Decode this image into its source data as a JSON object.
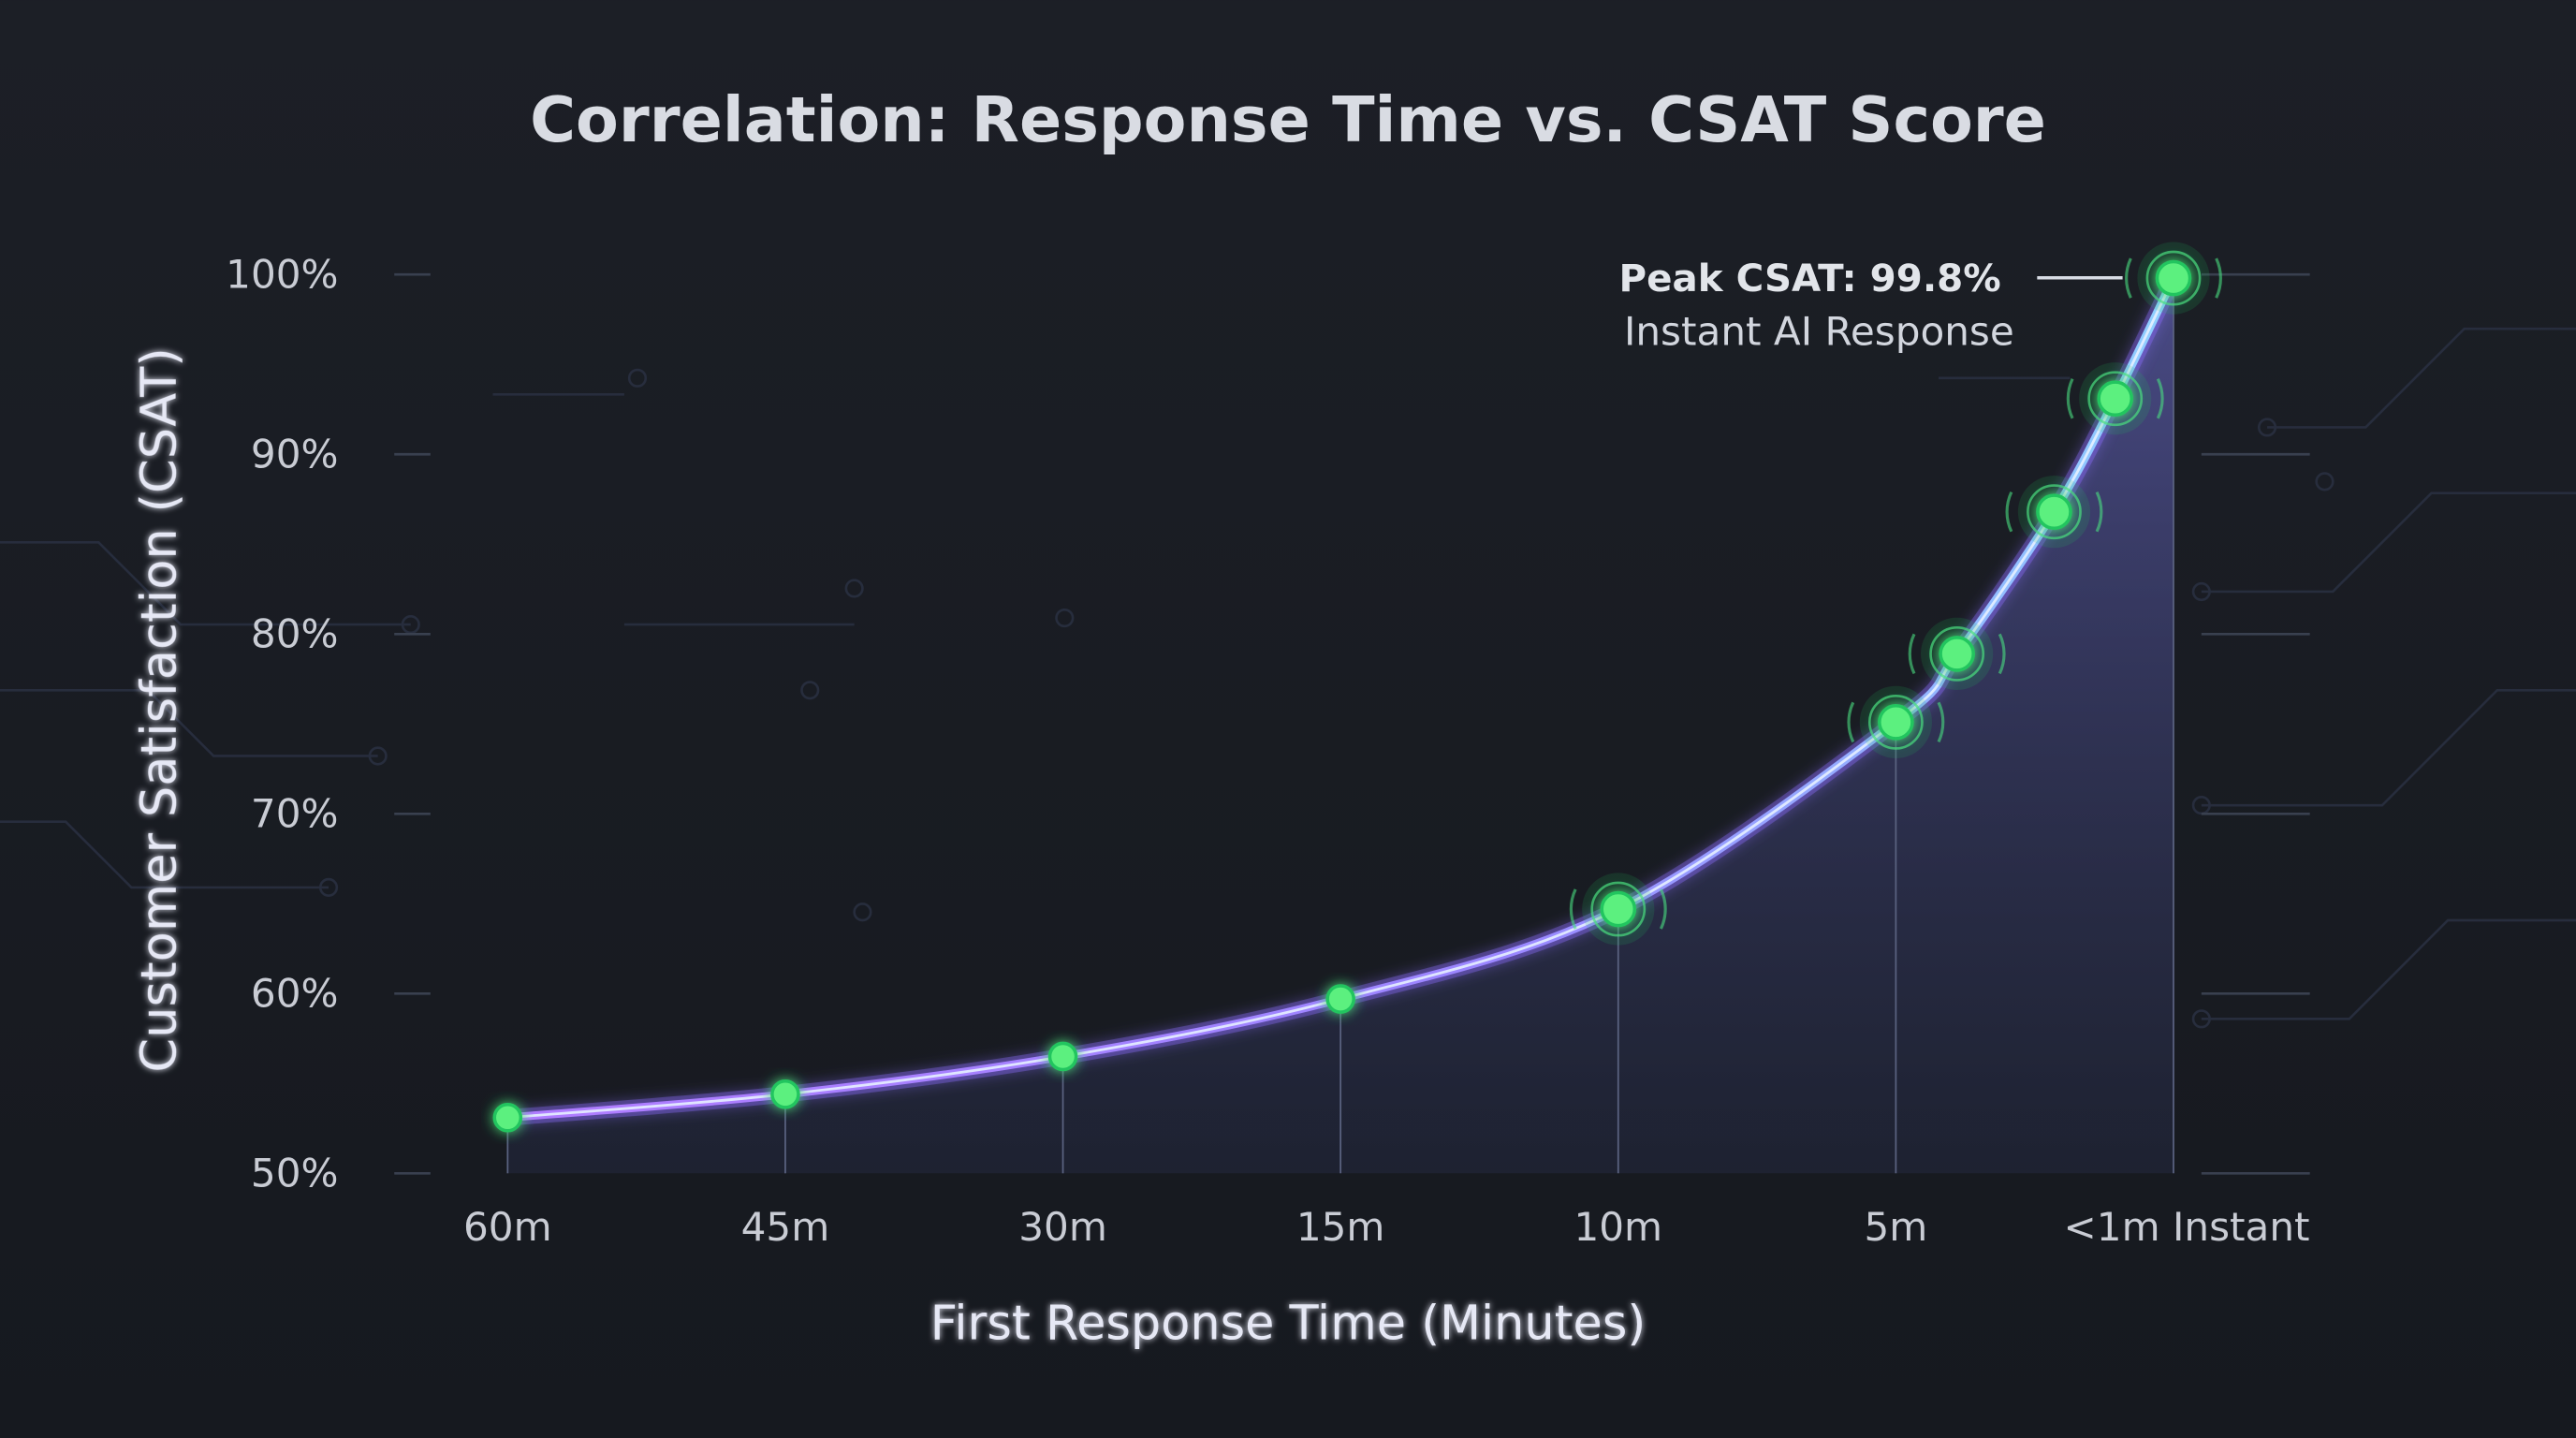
{
  "chart_data": {
    "type": "line",
    "title": "Correlation: Response Time vs. CSAT Score",
    "xlabel": "First Response Time (Minutes)",
    "ylabel": "Customer Satisfaction (CSAT)",
    "x_tick_labels": [
      "60m",
      "45m",
      "30m",
      "15m",
      "10m",
      "5m",
      "<1m Instant"
    ],
    "y_tick_labels": [
      "50%",
      "60%",
      "70%",
      "80%",
      "90%",
      "100%"
    ],
    "ylim": [
      50,
      100
    ],
    "grid": false,
    "series": [
      {
        "points": [
          {
            "x_tick_index": 0,
            "y": 53.1
          },
          {
            "x_tick_index": 1,
            "y": 54.4
          },
          {
            "x_tick_index": 2,
            "y": 56.5
          },
          {
            "x_tick_index": 3,
            "y": 59.7
          },
          {
            "x_tick_index": 4,
            "y": 64.7
          },
          {
            "x_tick_index": 5,
            "y": 75.1
          },
          {
            "x_tick_index": 5.22,
            "y": 78.9
          },
          {
            "x_tick_index": 5.57,
            "y": 86.8
          },
          {
            "x_tick_index": 5.79,
            "y": 93.1
          },
          {
            "x_tick_index": 6,
            "y": 99.8
          }
        ]
      }
    ],
    "annotation": {
      "title": "Peak CSAT: 99.8%",
      "subtitle": "Instant AI Response"
    },
    "colors": {
      "background": "#191c22",
      "line": "#a78bfa",
      "line_core": "#cfe6ff",
      "points": "#4ade80",
      "fill": "#4b4a8f",
      "axis": "#7aa6ff"
    }
  }
}
